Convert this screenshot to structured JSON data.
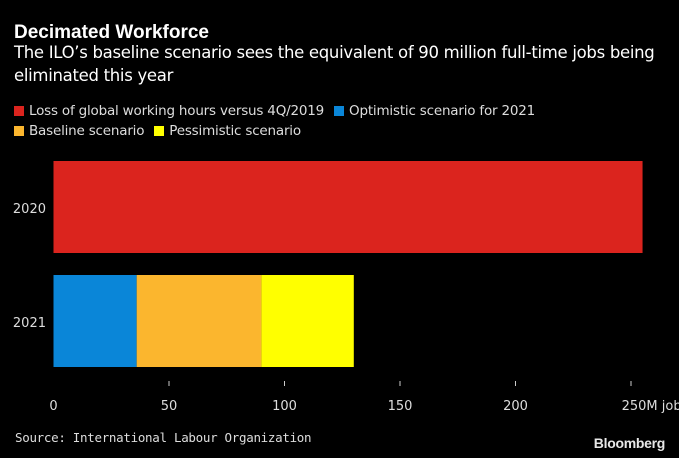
{
  "chart_data": {
    "type": "bar",
    "orientation": "horizontal",
    "stacked": true,
    "title": "Decimated Workforce",
    "subtitle": "The ILO’s baseline scenario sees the equivalent of 90 million full-time jobs being eliminated this year",
    "categories": [
      "2020",
      "2021"
    ],
    "series": [
      {
        "name": "Loss of global working hours versus 4Q/2019",
        "color": "#db241e",
        "values": [
          255,
          null
        ]
      },
      {
        "name": "Optimistic scenario for 2021",
        "color": "#0a86d8",
        "values": [
          null,
          36
        ]
      },
      {
        "name": "Baseline scenario",
        "color": "#fbb62e",
        "values": [
          null,
          54
        ]
      },
      {
        "name": "Pessimistic scenario",
        "color": "#ffff00",
        "values": [
          null,
          40
        ]
      }
    ],
    "cumulative_2021": {
      "optimistic": 36,
      "baseline": 90,
      "pessimistic": 130
    },
    "xlim": [
      0,
      255
    ],
    "xticks": [
      0,
      50,
      100,
      150,
      200,
      250
    ],
    "xtick_labels": [
      "0",
      "50",
      "100",
      "150",
      "200",
      "250M jobs"
    ],
    "xlabel": "",
    "ylabel": "",
    "grid": false,
    "legend_position": "top-left"
  },
  "legend": [
    [
      "Loss of global working hours versus 4Q/2019",
      "Optimistic scenario for 2021"
    ],
    [
      "Baseline scenario",
      "Pessimistic scenario"
    ]
  ],
  "footer": {
    "source": "Source: International Labour Organization",
    "brand": "Bloomberg"
  }
}
